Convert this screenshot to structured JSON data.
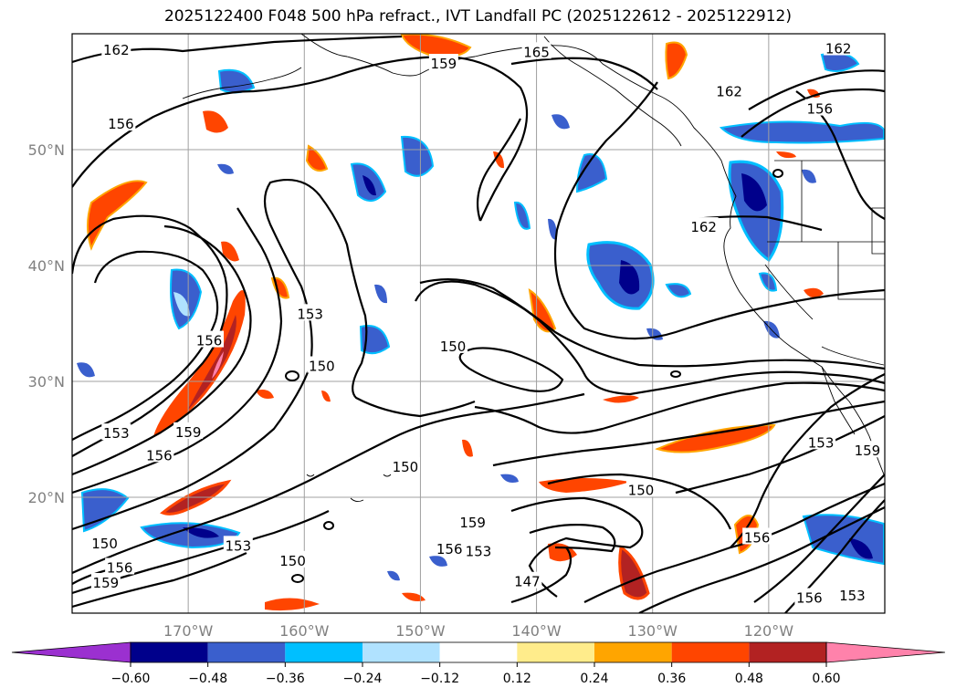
{
  "title": "2025122400 F048 500 hPa refract., IVT Landfall PC (2025122612 - 2025122912)",
  "map": {
    "projection": "PlateCarree",
    "lon_range": [
      -180,
      -110
    ],
    "lat_range": [
      10,
      60
    ],
    "gridlines": true,
    "lon_ticks": [
      {
        "value": -170,
        "label": "170°W"
      },
      {
        "value": -160,
        "label": "160°W"
      },
      {
        "value": -150,
        "label": "150°W"
      },
      {
        "value": -140,
        "label": "140°W"
      },
      {
        "value": -130,
        "label": "130°W"
      },
      {
        "value": -120,
        "label": "120°W"
      }
    ],
    "lat_ticks": [
      {
        "value": 50,
        "label": "50°N"
      },
      {
        "value": 40,
        "label": "40°N"
      },
      {
        "value": 30,
        "label": "30°N"
      },
      {
        "value": 20,
        "label": "20°N"
      }
    ],
    "contour_labels": [
      {
        "text": "162",
        "lon": -176.2,
        "lat": 58.6
      },
      {
        "text": "165",
        "lon": -140.0,
        "lat": 58.4
      },
      {
        "text": "159",
        "lon": -148.0,
        "lat": 57.4
      },
      {
        "text": "162",
        "lon": -114.0,
        "lat": 58.7
      },
      {
        "text": "162",
        "lon": -123.4,
        "lat": 55.0
      },
      {
        "text": "156",
        "lon": -175.8,
        "lat": 52.2
      },
      {
        "text": "156",
        "lon": -115.6,
        "lat": 53.5
      },
      {
        "text": "162",
        "lon": -125.6,
        "lat": 43.3
      },
      {
        "text": "153",
        "lon": -159.5,
        "lat": 35.8
      },
      {
        "text": "150",
        "lon": -147.2,
        "lat": 33.0
      },
      {
        "text": "150",
        "lon": -158.5,
        "lat": 31.3
      },
      {
        "text": "156",
        "lon": -168.2,
        "lat": 33.5
      },
      {
        "text": "153",
        "lon": -176.2,
        "lat": 25.5
      },
      {
        "text": "159",
        "lon": -170.0,
        "lat": 25.6
      },
      {
        "text": "156",
        "lon": -172.5,
        "lat": 23.6
      },
      {
        "text": "150",
        "lon": -151.3,
        "lat": 22.6
      },
      {
        "text": "153",
        "lon": -115.5,
        "lat": 24.7
      },
      {
        "text": "159",
        "lon": -111.5,
        "lat": 24.0
      },
      {
        "text": "150",
        "lon": -131.0,
        "lat": 20.6
      },
      {
        "text": "159",
        "lon": -145.5,
        "lat": 17.8
      },
      {
        "text": "156",
        "lon": -121.0,
        "lat": 16.5
      },
      {
        "text": "153",
        "lon": -145.0,
        "lat": 15.3
      },
      {
        "text": "156",
        "lon": -147.5,
        "lat": 15.5
      },
      {
        "text": "150",
        "lon": -177.2,
        "lat": 16.0
      },
      {
        "text": "153",
        "lon": -165.7,
        "lat": 15.8
      },
      {
        "text": "150",
        "lon": -161.0,
        "lat": 14.5
      },
      {
        "text": "156",
        "lon": -175.9,
        "lat": 13.9
      },
      {
        "text": "159",
        "lon": -177.1,
        "lat": 12.6
      },
      {
        "text": "147",
        "lon": -140.8,
        "lat": 12.7
      },
      {
        "text": "156",
        "lon": -116.5,
        "lat": 11.3
      },
      {
        "text": "153",
        "lon": -112.8,
        "lat": 11.5
      }
    ]
  },
  "colorbar": {
    "extend": "both",
    "colors": [
      "#9b30d0",
      "#00008b",
      "#3a5fcd",
      "#00bfff",
      "#b0e2ff",
      "#ffffff",
      "#ffec8b",
      "#ffa500",
      "#ff4500",
      "#b22222",
      "#ff82ab"
    ],
    "ticks": [
      "−0.60",
      "−0.48",
      "−0.36",
      "−0.24",
      "−0.12",
      "0.12",
      "0.24",
      "0.36",
      "0.48",
      "0.60"
    ]
  }
}
